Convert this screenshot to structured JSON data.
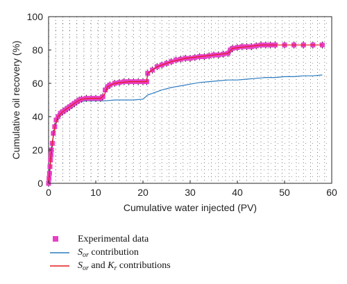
{
  "chart_data": {
    "type": "line",
    "xlabel": "Cumulative water injected (PV)",
    "ylabel": "Cumulative oil recovery (%)",
    "xlim": [
      0,
      60
    ],
    "ylim": [
      0,
      100
    ],
    "x_ticks": [
      "0",
      "10",
      "20",
      "30",
      "40",
      "50",
      "60"
    ],
    "y_ticks": [
      "0",
      "20",
      "40",
      "60",
      "80",
      "100"
    ],
    "grid": "dotted",
    "legend_position": "below",
    "series": [
      {
        "name": "Experimental data",
        "marker": "square",
        "color": "#e83fc8",
        "points": [
          [
            0,
            0
          ],
          [
            0.1,
            3
          ],
          [
            0.2,
            6
          ],
          [
            0.3,
            10
          ],
          [
            0.4,
            14
          ],
          [
            0.5,
            17
          ],
          [
            0.6,
            20
          ],
          [
            0.8,
            24
          ],
          [
            1,
            30
          ],
          [
            1.3,
            34
          ],
          [
            1.6,
            38
          ],
          [
            2,
            40
          ],
          [
            2.5,
            42
          ],
          [
            3,
            43
          ],
          [
            3.5,
            44
          ],
          [
            4,
            45
          ],
          [
            4.5,
            46
          ],
          [
            5,
            47
          ],
          [
            5.5,
            48
          ],
          [
            6,
            49
          ],
          [
            6.5,
            50
          ],
          [
            7,
            50.5
          ],
          [
            8,
            51
          ],
          [
            9,
            51
          ],
          [
            10,
            51
          ],
          [
            11,
            51
          ],
          [
            11.5,
            52
          ],
          [
            12,
            56
          ],
          [
            12.5,
            58
          ],
          [
            13,
            59
          ],
          [
            14,
            60
          ],
          [
            15,
            60.5
          ],
          [
            16,
            61
          ],
          [
            17,
            61
          ],
          [
            18,
            61
          ],
          [
            19,
            61
          ],
          [
            20,
            61
          ],
          [
            20.8,
            61
          ],
          [
            21,
            66
          ],
          [
            22,
            68
          ],
          [
            23,
            70
          ],
          [
            24,
            71
          ],
          [
            25,
            72
          ],
          [
            26,
            73
          ],
          [
            27,
            74
          ],
          [
            28,
            74.5
          ],
          [
            29,
            75
          ],
          [
            30,
            75
          ],
          [
            31,
            75.5
          ],
          [
            32,
            76
          ],
          [
            33,
            76
          ],
          [
            34,
            76.5
          ],
          [
            35,
            77
          ],
          [
            36,
            77
          ],
          [
            37,
            77.5
          ],
          [
            38,
            78
          ],
          [
            38.5,
            80
          ],
          [
            39,
            81
          ],
          [
            40,
            81.5
          ],
          [
            41,
            82
          ],
          [
            42,
            82
          ],
          [
            43,
            82
          ],
          [
            44,
            82.5
          ],
          [
            45,
            83
          ],
          [
            46,
            83
          ],
          [
            47,
            83
          ],
          [
            48,
            83
          ],
          [
            50,
            83
          ],
          [
            52,
            83
          ],
          [
            54,
            83
          ],
          [
            56,
            83
          ],
          [
            58,
            83
          ]
        ]
      },
      {
        "name": "S_or contribution",
        "color": "#2b7bc0",
        "points": [
          [
            0,
            0
          ],
          [
            0.3,
            8
          ],
          [
            0.6,
            18
          ],
          [
            1,
            28
          ],
          [
            1.5,
            35
          ],
          [
            2,
            40
          ],
          [
            3,
            43
          ],
          [
            4,
            45
          ],
          [
            5,
            47
          ],
          [
            6,
            48.5
          ],
          [
            7,
            49
          ],
          [
            8,
            49.5
          ],
          [
            10,
            49.5
          ],
          [
            12,
            49.5
          ],
          [
            14,
            50
          ],
          [
            16,
            50
          ],
          [
            18,
            50
          ],
          [
            20,
            50.5
          ],
          [
            21,
            53
          ],
          [
            22,
            54
          ],
          [
            24,
            56
          ],
          [
            26,
            57.5
          ],
          [
            28,
            58.5
          ],
          [
            30,
            59.5
          ],
          [
            32,
            60.5
          ],
          [
            34,
            61
          ],
          [
            36,
            61.5
          ],
          [
            38,
            62
          ],
          [
            40,
            62
          ],
          [
            42,
            62.5
          ],
          [
            44,
            63
          ],
          [
            46,
            63.5
          ],
          [
            48,
            63.5
          ],
          [
            50,
            64
          ],
          [
            52,
            64
          ],
          [
            54,
            64.5
          ],
          [
            56,
            64.5
          ],
          [
            58,
            65
          ]
        ]
      },
      {
        "name": "S_or and K_r contributions",
        "color": "#e31a1c",
        "points": [
          [
            0,
            0
          ],
          [
            0.3,
            10
          ],
          [
            0.6,
            20
          ],
          [
            1,
            29
          ],
          [
            1.5,
            36
          ],
          [
            2,
            40
          ],
          [
            3,
            43
          ],
          [
            4,
            45
          ],
          [
            5,
            47
          ],
          [
            6,
            49
          ],
          [
            7,
            50.5
          ],
          [
            9,
            51
          ],
          [
            11,
            51
          ],
          [
            11.8,
            53
          ],
          [
            12.5,
            58
          ],
          [
            14,
            60
          ],
          [
            17,
            61
          ],
          [
            20.8,
            61
          ],
          [
            21,
            66
          ],
          [
            23,
            70
          ],
          [
            26,
            73
          ],
          [
            29,
            75
          ],
          [
            32,
            76
          ],
          [
            35,
            77
          ],
          [
            38,
            78
          ],
          [
            39,
            81
          ],
          [
            42,
            82
          ],
          [
            45,
            83
          ],
          [
            50,
            83
          ],
          [
            58,
            83
          ]
        ]
      }
    ]
  },
  "legend": {
    "experimental": "Experimental data",
    "sor_symbol": "S",
    "sor_sub": "or",
    "sor_suffix": " contribution",
    "both_mid": " and ",
    "kr_symbol": "K",
    "kr_sub": "r",
    "both_suffix": " contributions"
  }
}
